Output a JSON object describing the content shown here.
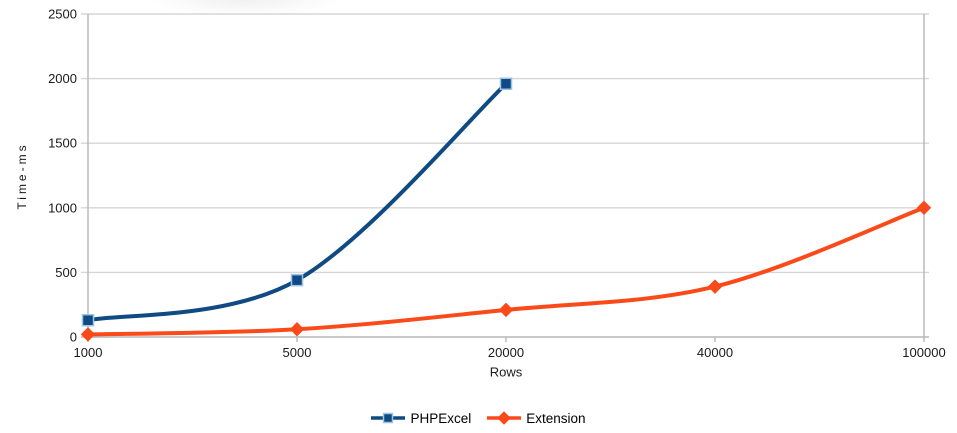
{
  "chart_data": {
    "type": "line",
    "title": "",
    "xlabel": "Rows",
    "ylabel": "Time-ms",
    "categories": [
      "1000",
      "5000",
      "20000",
      "40000",
      "100000"
    ],
    "y_ticks": [
      0,
      500,
      1000,
      1500,
      2000,
      2500
    ],
    "ylim": [
      0,
      2500
    ],
    "grid": "horizontal",
    "smooth": true,
    "legend_position": "bottom-center",
    "series": [
      {
        "name": "PHPExcel",
        "color": "#0f4b82",
        "marker": "square",
        "marker_border": "#9dc3e6",
        "values": [
          130,
          440,
          1960,
          null,
          null
        ]
      },
      {
        "name": "Extension",
        "color": "#fb4a19",
        "marker": "diamond",
        "marker_border": "#fb4a19",
        "values": [
          20,
          60,
          210,
          390,
          1000
        ]
      }
    ]
  },
  "colors": {
    "background": "#ffffff",
    "gridline": "#d6d6d6",
    "axis": "#b6b6b6",
    "text": "#1a1a1a"
  }
}
